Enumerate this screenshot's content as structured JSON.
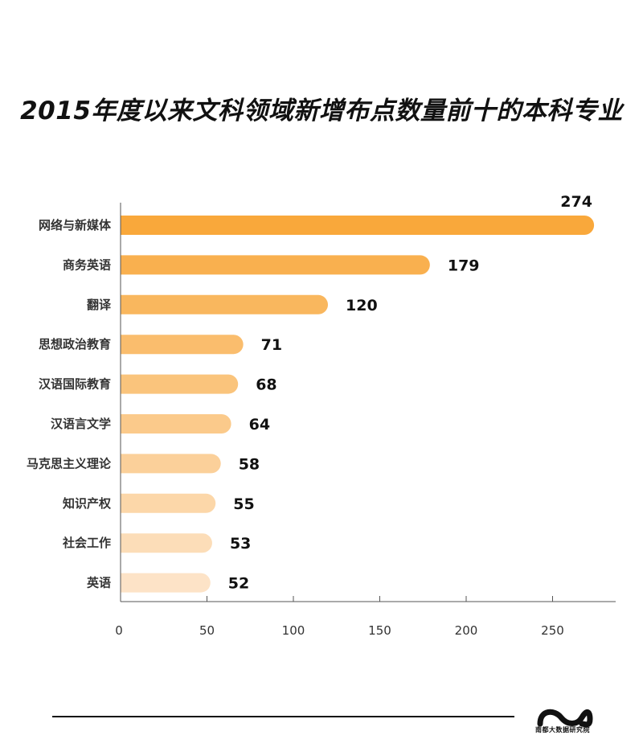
{
  "chart_data": {
    "type": "bar",
    "orientation": "horizontal",
    "title": "2015年度以来文科领域新增布点数量前十的本科专业",
    "categories": [
      "网络与新媒体",
      "商务英语",
      "翻译",
      "思想政治教育",
      "汉语国际教育",
      "汉语言文学",
      "马克思主义理论",
      "知识产权",
      "社会工作",
      "英语"
    ],
    "values": [
      274,
      179,
      120,
      71,
      68,
      64,
      58,
      55,
      53,
      52
    ],
    "xlim": [
      0,
      280
    ],
    "xticks": [
      0,
      50,
      100,
      150,
      200,
      250
    ],
    "grid": false,
    "colors": [
      "#f9a83b",
      "#f9b04f",
      "#f9b75e",
      "#fabd6d",
      "#fac47c",
      "#fbca8b",
      "#fbd09a",
      "#fcd7a9",
      "#fcddb8",
      "#fde3c7"
    ]
  },
  "brand": {
    "name": "南都大数据研究院"
  }
}
